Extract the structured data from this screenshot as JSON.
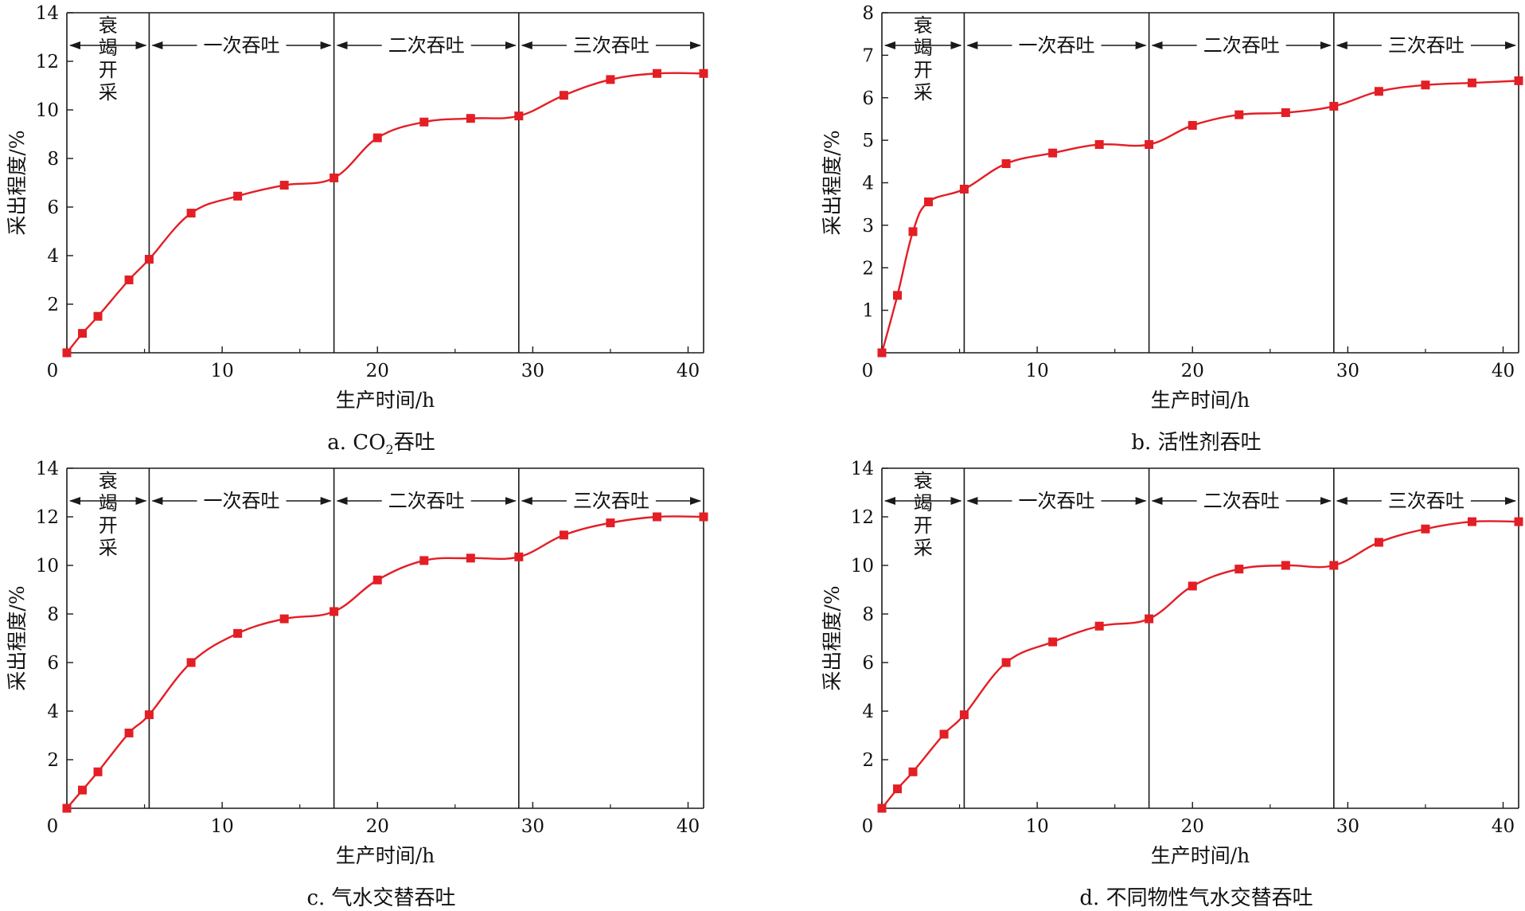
{
  "chart_data": [
    {
      "type": "line",
      "panel_label": "a. CO",
      "panel_label_sub": "2",
      "panel_label_tail": "吞吐",
      "xlabel": "生产时间/h",
      "ylabel": "采出程度/%",
      "xlim": [
        0,
        41
      ],
      "ylim": [
        0,
        14
      ],
      "xticks": [
        0,
        10,
        20,
        30,
        40
      ],
      "yticks": [
        2,
        4,
        6,
        8,
        10,
        12,
        14
      ],
      "phase_boundaries": [
        5.3,
        17.2,
        29.1
      ],
      "phases": [
        "衰竭开采",
        "一次吞吐",
        "二次吞吐",
        "三次吞吐"
      ],
      "x": [
        0,
        1,
        2,
        4,
        5.3,
        8,
        11,
        14,
        17.2,
        20,
        23,
        26,
        29.1,
        32,
        35,
        38,
        41
      ],
      "values": [
        0,
        0.8,
        1.5,
        3.0,
        3.85,
        5.75,
        6.45,
        6.9,
        7.2,
        8.85,
        9.5,
        9.65,
        9.75,
        10.6,
        11.25,
        11.5,
        11.5
      ]
    },
    {
      "type": "line",
      "panel_label": "b. 活性剂吞吐",
      "panel_label_sub": "",
      "panel_label_tail": "",
      "xlabel": "生产时间/h",
      "ylabel": "采出程度/%",
      "xlim": [
        0,
        41
      ],
      "ylim": [
        0,
        8
      ],
      "xticks": [
        0,
        10,
        20,
        30,
        40
      ],
      "yticks": [
        1,
        2,
        3,
        4,
        5,
        6,
        7,
        8
      ],
      "phase_boundaries": [
        5.3,
        17.2,
        29.1
      ],
      "phases": [
        "衰竭开采",
        "一次吞吐",
        "二次吞吐",
        "三次吞吐"
      ],
      "x": [
        0,
        1,
        2,
        3,
        5.3,
        8,
        11,
        14,
        17.2,
        20,
        23,
        26,
        29.1,
        32,
        35,
        38,
        41
      ],
      "values": [
        0,
        1.35,
        2.85,
        3.55,
        3.85,
        4.45,
        4.7,
        4.9,
        4.9,
        5.35,
        5.6,
        5.65,
        5.8,
        6.15,
        6.3,
        6.35,
        6.4
      ]
    },
    {
      "type": "line",
      "panel_label": "c. 气水交替吞吐",
      "panel_label_sub": "",
      "panel_label_tail": "",
      "xlabel": "生产时间/h",
      "ylabel": "采出程度/%",
      "xlim": [
        0,
        41
      ],
      "ylim": [
        0,
        14
      ],
      "xticks": [
        0,
        10,
        20,
        30,
        40
      ],
      "yticks": [
        2,
        4,
        6,
        8,
        10,
        12,
        14
      ],
      "phase_boundaries": [
        5.3,
        17.2,
        29.1
      ],
      "phases": [
        "衰竭开采",
        "一次吞吐",
        "二次吞吐",
        "三次吞吐"
      ],
      "x": [
        0,
        1,
        2,
        4,
        5.3,
        8,
        11,
        14,
        17.2,
        20,
        23,
        26,
        29.1,
        32,
        35,
        38,
        41
      ],
      "values": [
        0,
        0.75,
        1.5,
        3.1,
        3.85,
        6.0,
        7.2,
        7.8,
        8.1,
        9.4,
        10.2,
        10.3,
        10.35,
        11.25,
        11.75,
        12.0,
        12.0
      ]
    },
    {
      "type": "line",
      "panel_label": "d. 不同物性气水交替吞吐",
      "panel_label_sub": "",
      "panel_label_tail": "",
      "xlabel": "生产时间/h",
      "ylabel": "采出程度/%",
      "xlim": [
        0,
        41
      ],
      "ylim": [
        0,
        14
      ],
      "xticks": [
        0,
        10,
        20,
        30,
        40
      ],
      "yticks": [
        2,
        4,
        6,
        8,
        10,
        12,
        14
      ],
      "phase_boundaries": [
        5.3,
        17.2,
        29.1
      ],
      "phases": [
        "衰竭开采",
        "一次吞吐",
        "二次吞吐",
        "三次吞吐"
      ],
      "x": [
        0,
        1,
        2,
        4,
        5.3,
        8,
        11,
        14,
        17.2,
        20,
        23,
        26,
        29.1,
        32,
        35,
        38,
        41
      ],
      "values": [
        0,
        0.8,
        1.5,
        3.05,
        3.85,
        6.0,
        6.85,
        7.5,
        7.8,
        9.15,
        9.85,
        10.0,
        10.0,
        10.95,
        11.5,
        11.8,
        11.8
      ]
    }
  ],
  "colors": {
    "series": "#e31e25",
    "axis": "#1a1a1a"
  }
}
